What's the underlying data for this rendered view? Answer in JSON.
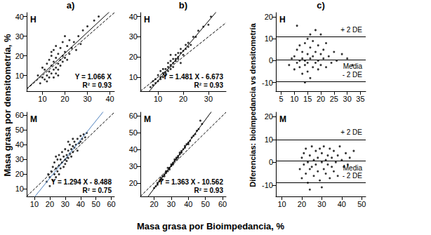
{
  "chart_data": [
    {
      "type": "scatter",
      "title": "a)",
      "annotations": [
        "H",
        "Y = 1.066 X",
        "R² = 0.93"
      ],
      "color": "#000000",
      "x": [
        8,
        9,
        10,
        10,
        11,
        11,
        12,
        12,
        12,
        13,
        13,
        13,
        14,
        14,
        14,
        15,
        15,
        15,
        15,
        16,
        16,
        16,
        16,
        17,
        17,
        17,
        18,
        18,
        18,
        19,
        19,
        19,
        20,
        20,
        21,
        21,
        22,
        22,
        23,
        24,
        25,
        26,
        27,
        28,
        30,
        33,
        35,
        17,
        20,
        14
      ],
      "values": [
        10,
        6,
        9,
        14,
        8,
        13,
        10,
        16,
        7,
        12,
        18,
        9,
        15,
        11,
        20,
        13,
        17,
        23,
        9,
        14,
        19,
        25,
        11,
        16,
        21,
        13,
        18,
        24,
        15,
        20,
        27,
        17,
        19,
        22,
        25,
        18,
        21,
        28,
        24,
        27,
        23,
        30,
        26,
        33,
        35,
        38,
        40,
        10,
        30,
        22
      ],
      "lines": [
        {
          "slope": 1.066,
          "intercept": 0,
          "color": "#000000",
          "line_style": "solid"
        },
        {
          "slope": 1,
          "intercept": 0,
          "color": "#000000",
          "line_style": "dashed"
        }
      ],
      "xlim": [
        3,
        42
      ],
      "xticks": [
        10,
        20,
        30,
        40
      ],
      "ylim": [
        2,
        42
      ],
      "yticks": [
        10,
        20,
        30,
        40
      ],
      "grid": false
    },
    {
      "type": "scatter",
      "annotations": [
        "M",
        "Y = 1.294 X - 8.488",
        "R² = 0.75"
      ],
      "color": "#000000",
      "x": [
        18,
        19,
        20,
        20,
        21,
        22,
        22,
        23,
        23,
        24,
        24,
        25,
        25,
        26,
        26,
        27,
        27,
        28,
        28,
        29,
        29,
        30,
        30,
        30,
        31,
        31,
        32,
        32,
        33,
        33,
        34,
        34,
        35,
        35,
        36,
        36,
        37,
        38,
        38,
        39,
        40,
        40,
        41,
        42,
        43,
        44,
        26,
        32,
        35,
        24
      ],
      "values": [
        15,
        20,
        12,
        18,
        22,
        16,
        25,
        20,
        28,
        18,
        24,
        30,
        22,
        26,
        33,
        24,
        30,
        28,
        35,
        25,
        32,
        30,
        37,
        27,
        33,
        29,
        36,
        31,
        34,
        40,
        37,
        32,
        39,
        35,
        42,
        38,
        40,
        44,
        36,
        41,
        46,
        42,
        44,
        47,
        45,
        48,
        20,
        42,
        44,
        32
      ],
      "lines": [
        {
          "slope": 1.294,
          "intercept": -8.488,
          "color": "#4f81bd",
          "line_style": "solid"
        },
        {
          "slope": 1,
          "intercept": 0,
          "color": "#000000",
          "line_style": "dashed"
        }
      ],
      "xlim": [
        5,
        62
      ],
      "xticks": [
        10,
        20,
        30,
        40,
        50,
        60
      ],
      "ylim": [
        5,
        62
      ],
      "yticks": [
        10,
        20,
        30,
        40,
        50,
        60
      ],
      "grid": false
    },
    {
      "type": "scatter",
      "title": "b)",
      "annotations": [
        "H",
        "Y = 1.481 X - 6.673",
        "R² = 0.93"
      ],
      "color": "#000000",
      "x": [
        7,
        8,
        8,
        9,
        9,
        10,
        10,
        11,
        11,
        12,
        12,
        12,
        13,
        13,
        13,
        14,
        14,
        14,
        15,
        15,
        15,
        16,
        16,
        16,
        17,
        17,
        17,
        18,
        18,
        18,
        19,
        19,
        20,
        20,
        21,
        21,
        22,
        22,
        23,
        24,
        25,
        26,
        28,
        30,
        31,
        19,
        15,
        11
      ],
      "values": [
        5,
        6,
        8,
        7,
        9,
        8,
        11,
        10,
        9,
        12,
        10,
        14,
        12,
        14,
        11,
        15,
        13,
        17,
        16,
        14,
        18,
        17,
        19,
        15,
        19,
        21,
        18,
        20,
        22,
        19,
        22,
        24,
        23,
        21,
        24,
        26,
        25,
        27,
        26,
        30,
        30,
        33,
        35,
        36,
        40,
        17,
        21,
        13
      ],
      "lines": [
        {
          "slope": 1.481,
          "intercept": -6.673,
          "color": "#000000",
          "line_style": "solid"
        },
        {
          "slope": 1,
          "intercept": 0,
          "color": "#000000",
          "line_style": "dashed"
        }
      ],
      "xlim": [
        3,
        37
      ],
      "xticks": [
        10,
        20,
        30
      ],
      "ylim": [
        3,
        42
      ],
      "yticks": [
        10,
        20,
        30,
        40
      ],
      "grid": false
    },
    {
      "type": "scatter",
      "annotations": [
        "M",
        "Y = 1.363 X - 10.562",
        "R² = 0.93"
      ],
      "color": "#000000",
      "x": [
        20,
        21,
        22,
        22,
        23,
        24,
        24,
        25,
        25,
        26,
        26,
        27,
        27,
        28,
        28,
        29,
        29,
        30,
        30,
        31,
        31,
        32,
        32,
        33,
        33,
        34,
        34,
        35,
        35,
        36,
        36,
        37,
        38,
        38,
        39,
        40,
        40,
        41,
        42,
        43,
        44,
        45,
        46,
        48,
        47
      ],
      "values": [
        17,
        18,
        20,
        19,
        21,
        22,
        23,
        24,
        22,
        25,
        24,
        26,
        27,
        27,
        29,
        29,
        28,
        30,
        31,
        31,
        32,
        33,
        34,
        34,
        35,
        36,
        35,
        37,
        38,
        38,
        39,
        40,
        41,
        42,
        43,
        44,
        43,
        45,
        47,
        48,
        49,
        51,
        52,
        55,
        57
      ],
      "lines": [
        {
          "slope": 1.363,
          "intercept": -10.562,
          "color": "#000000",
          "line_style": "solid"
        },
        {
          "slope": 1,
          "intercept": 0,
          "color": "#000000",
          "line_style": "dashed"
        }
      ],
      "xlim": [
        12,
        62
      ],
      "xticks": [
        20,
        30,
        40,
        50,
        60
      ],
      "ylim": [
        12,
        62
      ],
      "yticks": [
        20,
        30,
        40,
        50,
        60
      ],
      "grid": false
    },
    {
      "type": "scatter",
      "title": "c)",
      "annotations": [
        "H"
      ],
      "color": "#000000",
      "x": [
        8,
        9,
        10,
        10,
        11,
        11,
        12,
        12,
        12,
        13,
        13,
        13,
        14,
        14,
        14,
        15,
        15,
        15,
        15,
        16,
        16,
        16,
        16,
        17,
        17,
        17,
        18,
        18,
        18,
        19,
        19,
        19,
        20,
        20,
        21,
        21,
        22,
        22,
        23,
        24,
        25,
        26,
        28,
        30,
        32,
        14,
        11,
        20
      ],
      "values": [
        -2,
        1,
        -4,
        2,
        -1,
        5,
        -3,
        0,
        7,
        -6,
        1,
        4,
        -2,
        8,
        0,
        -5,
        3,
        10,
        -1,
        1,
        6,
        -8,
        12,
        -3,
        2,
        9,
        -1,
        4,
        14,
        0,
        7,
        -4,
        3,
        -2,
        5,
        1,
        -3,
        8,
        2,
        -1,
        4,
        0,
        3,
        1,
        -2,
        -10,
        16,
        12
      ],
      "hlines": [
        {
          "value": 11,
          "label": "+ 2 DE"
        },
        {
          "value": 0.5,
          "label": "Media"
        },
        {
          "value": -9.5,
          "label": "- 2 DE"
        }
      ],
      "xlim": [
        3,
        37
      ],
      "xticks": [
        5,
        10,
        15,
        20,
        25,
        30,
        35
      ],
      "ylim": [
        -14,
        22
      ],
      "yticks": [
        -10,
        0,
        10,
        20
      ],
      "grid": false
    },
    {
      "type": "scatter",
      "annotations": [
        "M"
      ],
      "color": "#000000",
      "x": [
        19,
        20,
        20,
        21,
        21,
        22,
        22,
        23,
        23,
        24,
        24,
        25,
        25,
        26,
        26,
        27,
        27,
        28,
        28,
        29,
        29,
        30,
        30,
        31,
        31,
        32,
        32,
        33,
        33,
        34,
        34,
        35,
        35,
        36,
        36,
        37,
        38,
        38,
        39,
        40,
        41,
        42,
        43,
        44,
        46,
        24,
        30
      ],
      "values": [
        -3,
        2,
        -7,
        4,
        -1,
        -5,
        6,
        0,
        -9,
        3,
        -3,
        7,
        -2,
        1,
        -6,
        5,
        -1,
        -4,
        2,
        6,
        -8,
        0,
        4,
        -3,
        7,
        1,
        -5,
        3,
        -1,
        6,
        -7,
        2,
        -2,
        5,
        -4,
        0,
        3,
        -6,
        7,
        1,
        -2,
        4,
        -1,
        2,
        5,
        -12,
        -11
      ],
      "hlines": [
        {
          "value": 10,
          "label": "+ 2 DE"
        },
        {
          "value": 0.5,
          "label": "Media"
        },
        {
          "value": -9,
          "label": "- 2 DE"
        }
      ],
      "xlim": [
        7,
        52
      ],
      "xticks": [
        10,
        20,
        30,
        40,
        50
      ],
      "ylim": [
        -15,
        22
      ],
      "yticks": [
        -10,
        0,
        10,
        20
      ],
      "grid": false
    }
  ],
  "xlabel": "Masa grasa por Bioimpedancia, %",
  "ylabels": [
    "Masa grasa por densitometría, %",
    "Diferencias: bioimpedancia vs densitometría"
  ]
}
